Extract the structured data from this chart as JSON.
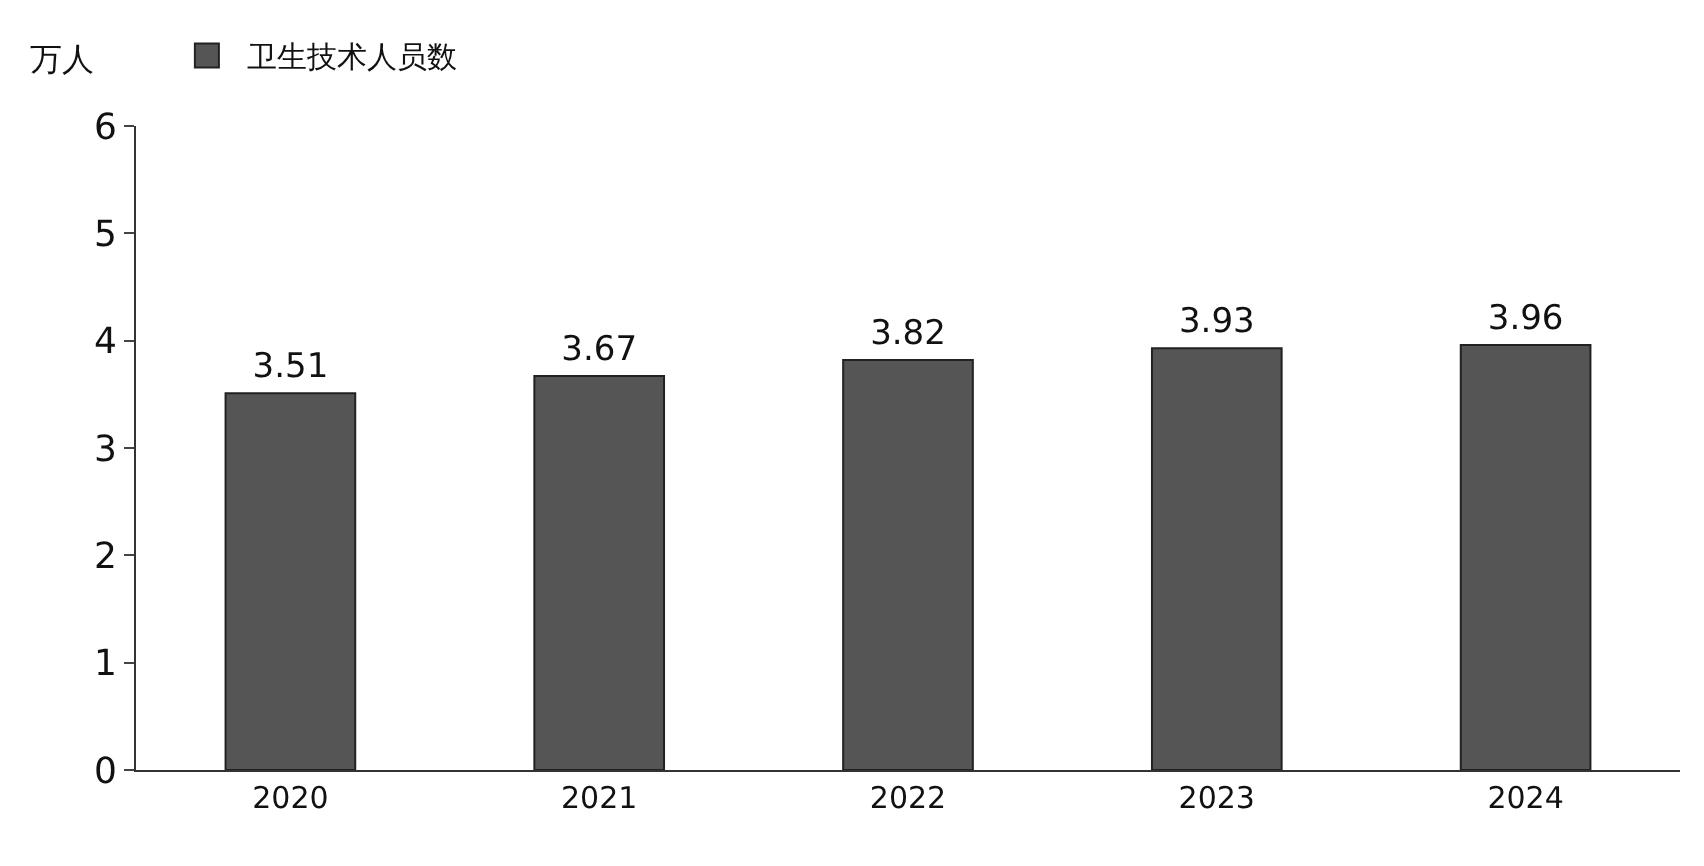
{
  "chart_data": {
    "type": "bar",
    "ylabel": "万人",
    "categories": [
      "2020",
      "2021",
      "2022",
      "2023",
      "2024"
    ],
    "series": [
      {
        "name": "卫生技术人员数",
        "color": "#555555",
        "values": [
          3.51,
          3.67,
          3.82,
          3.93,
          3.96
        ]
      }
    ],
    "ylim": [
      0,
      6
    ],
    "yticks": [
      0,
      1,
      2,
      3,
      4,
      5,
      6
    ],
    "data_labels": true,
    "legend": "top left"
  }
}
